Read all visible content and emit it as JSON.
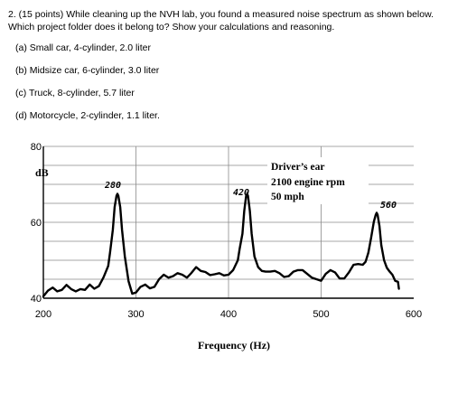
{
  "question": {
    "line1": "2. (15 points) While cleaning up the NVH lab, you found a measured noise spectrum as shown below.",
    "line2": "Which project folder does it belong to? Show your calculations and reasoning."
  },
  "options": [
    "(a) Small car, 4-cylinder, 2.0 liter",
    "(b) Midsize car, 6-cylinder, 3.0 liter",
    "(c) Truck, 8-cylinder, 5.7 liter",
    "(d) Motorcycle, 2-cylinder, 1.1 liter."
  ],
  "chart_data": {
    "type": "line",
    "xlabel": "Frequency (Hz)",
    "ylabel": "dB",
    "xlim": [
      200,
      600
    ],
    "ylim": [
      40,
      80
    ],
    "x_ticks": [
      200,
      300,
      400,
      500,
      600
    ],
    "y_ticks": [
      80,
      60,
      40
    ],
    "grid": true,
    "annotation": [
      "Driver’s ear",
      "2100 engine rpm",
      "50 mph"
    ],
    "peak_labels": [
      "280",
      "420",
      "560"
    ],
    "series": [
      {
        "x": [
          200,
          205,
          210,
          215,
          220,
          225,
          230,
          235,
          240,
          245,
          250,
          255,
          260,
          265,
          270,
          272,
          275,
          277,
          279,
          280,
          281,
          283,
          285,
          288,
          292,
          296,
          300,
          305,
          310,
          315,
          320,
          325,
          330,
          335,
          340,
          345,
          350,
          355,
          360,
          365,
          370,
          375,
          380,
          385,
          390,
          395,
          400,
          405,
          410,
          412,
          415,
          417,
          419,
          420,
          421,
          423,
          425,
          428,
          432,
          436,
          440,
          445,
          450,
          455,
          460,
          465,
          470,
          475,
          480,
          485,
          490,
          495,
          500,
          505,
          510,
          515,
          520,
          525,
          530,
          535,
          540,
          545,
          548,
          551,
          554,
          557,
          559,
          560,
          561,
          563,
          565,
          568,
          571,
          574,
          577,
          580,
          583
        ],
        "y": [
          40.5,
          42,
          42.8,
          41.8,
          42.2,
          43.5,
          42.4,
          41.8,
          42.4,
          42.2,
          43.6,
          42.5,
          43.2,
          45.5,
          48.5,
          52,
          58,
          64,
          67,
          67.5,
          67,
          64,
          58,
          51,
          44.5,
          41.2,
          41.5,
          43,
          43.6,
          42.6,
          43,
          45,
          46.2,
          45.4,
          45.8,
          46.6,
          46.2,
          45.4,
          46.7,
          48.2,
          47.2,
          46.9,
          46.1,
          46.3,
          46.6,
          46,
          46.2,
          47.4,
          50,
          53,
          57,
          63,
          67,
          67.5,
          67,
          63,
          57,
          51,
          48.2,
          47.2,
          47,
          47,
          47.2,
          46.6,
          45.6,
          45.8,
          47,
          47.4,
          47.4,
          46.4,
          45.4,
          45,
          44.6,
          46.4,
          47.4,
          46.8,
          45.2,
          45.2,
          46.8,
          48.8,
          49,
          48.8,
          49.6,
          52,
          56,
          60.2,
          62,
          62.5,
          62,
          59,
          54,
          50,
          48,
          47,
          46.2,
          44.6,
          44.3
        ]
      }
    ]
  }
}
